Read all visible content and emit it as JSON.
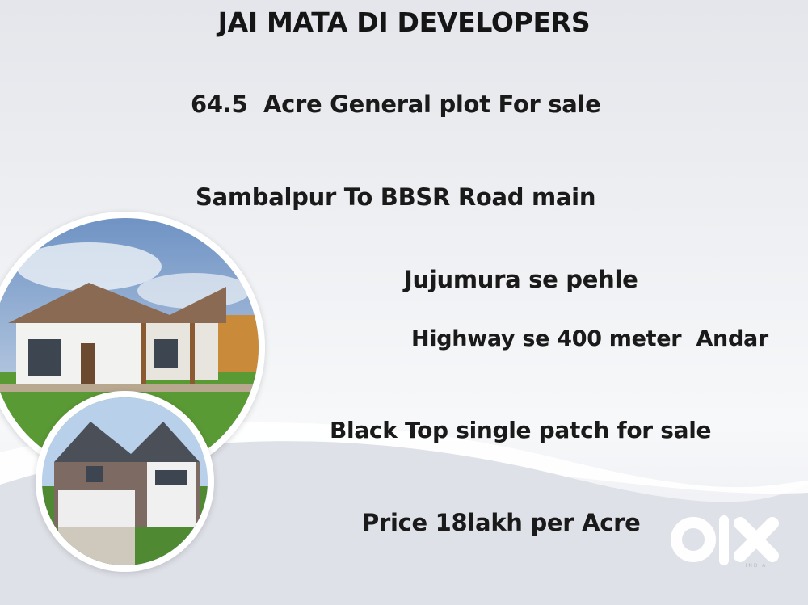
{
  "title": "JAI MATA DI DEVELOPERS",
  "lines": [
    "64.5  Acre General plot For sale",
    "Sambalpur To BBSR Road main",
    "Jujumura se pehle",
    "Highway se 400 meter  Andar",
    "Black Top single patch for sale",
    "Price 18lakh per Acre"
  ],
  "watermark": {
    "brand": "OLX",
    "sub": "INDIA"
  },
  "colors": {
    "text": "#1a1a1a",
    "background": "#eceef2"
  }
}
